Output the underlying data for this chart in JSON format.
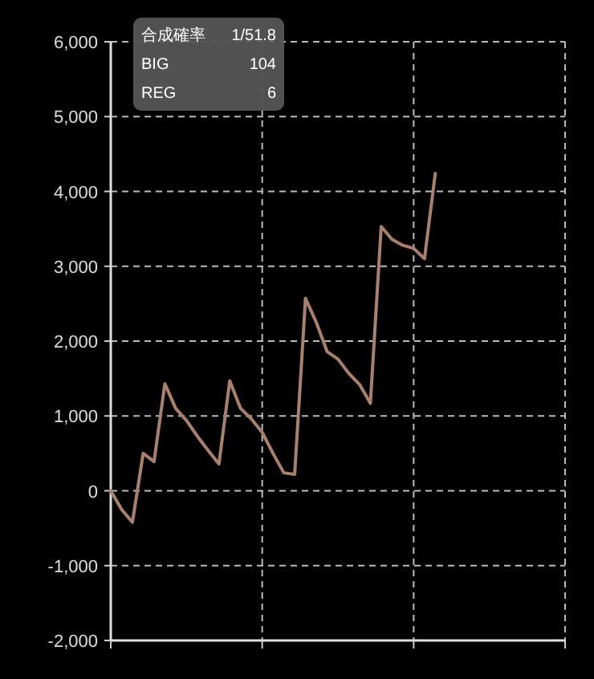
{
  "chart_data": {
    "type": "line",
    "categories": [
      null,
      null,
      null,
      null,
      null,
      null,
      null,
      null,
      null,
      null,
      null,
      null,
      null,
      null,
      null,
      null,
      null,
      null,
      null,
      null,
      null,
      null,
      null,
      null,
      null,
      null,
      null,
      null,
      null,
      null,
      null,
      null,
      null,
      null,
      null,
      null,
      null,
      null,
      null,
      null,
      null,
      null,
      null
    ],
    "series": [
      {
        "color": "#a8806b",
        "values": [
          0,
          -250,
          -420,
          500,
          390,
          1430,
          1100,
          940,
          730,
          540,
          360,
          1470,
          1100,
          960,
          780,
          500,
          240,
          220,
          2570,
          2250,
          1860,
          1760,
          1570,
          1420,
          1170,
          3530,
          3360,
          3280,
          3240,
          3100,
          4240,
          null,
          null,
          null,
          null,
          null,
          null,
          null,
          null,
          null,
          null,
          null,
          null
        ]
      }
    ],
    "ylim": [
      -2000,
      6000
    ],
    "yticks": [
      {
        "value": -2000,
        "label": "-2,000"
      },
      {
        "value": -1000,
        "label": "-1,000"
      },
      {
        "value": 0,
        "label": "0"
      },
      {
        "value": 1000,
        "label": "1,000"
      },
      {
        "value": 2000,
        "label": "2,000"
      },
      {
        "value": 3000,
        "label": "3,000"
      },
      {
        "value": 4000,
        "label": "4,000"
      },
      {
        "value": 5000,
        "label": "5,000"
      },
      {
        "value": 6000,
        "label": "6,000"
      }
    ],
    "grid": true,
    "annotations": [
      "合成確率",
      "1/51.8",
      "BIG",
      "104",
      "REG",
      "6"
    ]
  }
}
